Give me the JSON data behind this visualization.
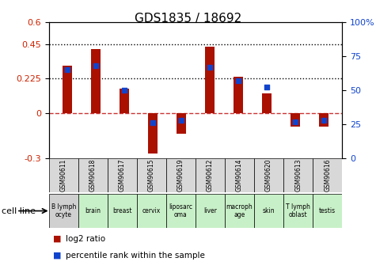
{
  "title": "GDS1835 / 18692",
  "samples": [
    "GSM90611",
    "GSM90618",
    "GSM90617",
    "GSM90615",
    "GSM90619",
    "GSM90612",
    "GSM90614",
    "GSM90620",
    "GSM90613",
    "GSM90616"
  ],
  "cell_lines": [
    [
      "B lymph",
      "ocyte"
    ],
    [
      "brain"
    ],
    [
      "breast"
    ],
    [
      "cervix"
    ],
    [
      "liposarc",
      "oma"
    ],
    [
      "liver"
    ],
    [
      "macroph",
      "age"
    ],
    [
      "skin"
    ],
    [
      "T lymph",
      "oblast"
    ],
    [
      "testis"
    ]
  ],
  "cell_colors": [
    "#d0d0d0",
    "#c8f0c8",
    "#c8f0c8",
    "#c8f0c8",
    "#c8f0c8",
    "#c8f0c8",
    "#c8f0c8",
    "#c8f0c8",
    "#c8f0c8",
    "#c8f0c8"
  ],
  "log2_ratio": [
    0.31,
    0.42,
    0.16,
    -0.27,
    -0.14,
    0.435,
    0.24,
    0.13,
    -0.09,
    -0.09
  ],
  "percentile_rank": [
    65,
    68,
    50,
    26,
    28,
    67,
    57,
    52,
    27,
    28
  ],
  "ylim_left": [
    -0.3,
    0.6
  ],
  "ylim_right": [
    0,
    100
  ],
  "yticks_left": [
    -0.3,
    0.0,
    0.225,
    0.45,
    0.6
  ],
  "yticks_right": [
    0,
    25,
    50,
    75,
    100
  ],
  "bar_color": "#aa1100",
  "dot_color": "#1144cc",
  "zero_line_color": "#cc3333",
  "dotted_line_color": "#000000",
  "bg_color": "#ffffff",
  "legend_red": "log2 ratio",
  "legend_blue": "percentile rank within the sample",
  "cell_line_label": "cell line"
}
